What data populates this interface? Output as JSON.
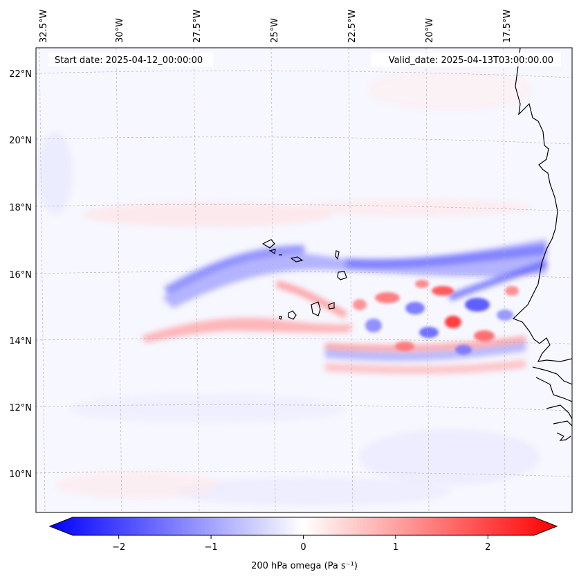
{
  "map": {
    "start_date_label": "Start date: 2025-04-12_00:00:00",
    "valid_date_label": "Valid_date: 2025-04-13T03:00:00.00",
    "longitude_labels": [
      "32.5°W",
      "30°W",
      "27.5°W",
      "25°W",
      "22.5°W",
      "20°W",
      "17.5°W"
    ],
    "latitude_labels": [
      "22°N",
      "20°N",
      "18°N",
      "16°N",
      "14°N",
      "12°N",
      "10°N"
    ],
    "field": "200 hPa omega",
    "units": "Pa s⁻¹",
    "region": "Eastern tropical North Atlantic with Cape Verde Islands and the West African coast"
  },
  "colorbar": {
    "label": "200 hPa omega (Pa s⁻¹)",
    "ticks": [
      "−2",
      "−1",
      "0",
      "1",
      "2"
    ],
    "tick_values": [
      -2,
      -1,
      0,
      1,
      2
    ],
    "min": -2.5,
    "max": 2.5,
    "negative_color": "#0000ff",
    "neutral_color": "#ffffff",
    "positive_color": "#ff0000"
  },
  "colors": {
    "coastline": "#000000",
    "gridline": "#b4b4b4",
    "background_field": "#f7f7ff"
  }
}
